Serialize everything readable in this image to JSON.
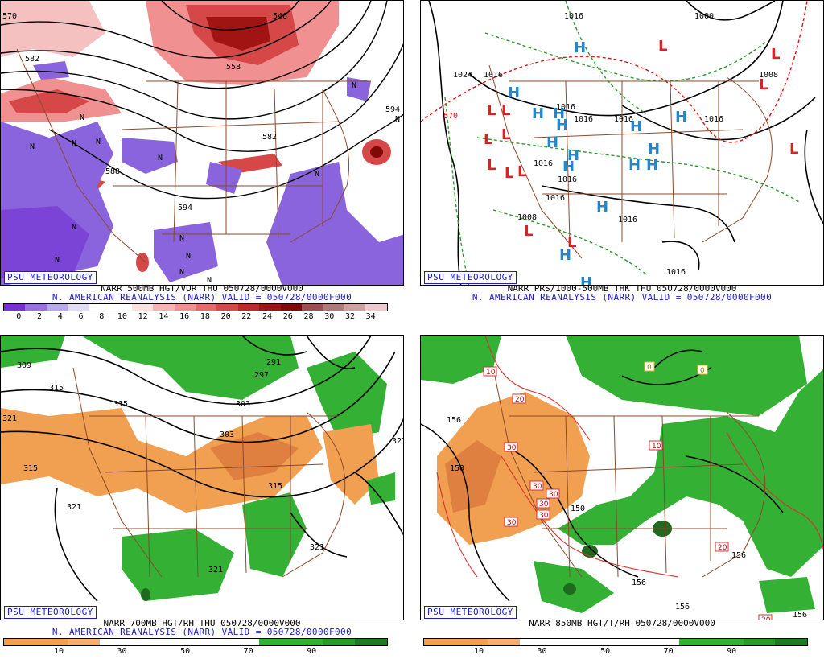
{
  "panels": [
    {
      "brand": "PSU METEOROLOGY",
      "caption1": "NARR 500MB HGT/VOR THU 050728/0000V000",
      "caption2": "N. AMERICAN REANALYSIS (NARR) VALID = 050728/0000F000",
      "colorbar_ticks": [
        "0",
        "2",
        "4",
        "6",
        "8",
        "10",
        "12",
        "14",
        "16",
        "18",
        "20",
        "22",
        "24",
        "26",
        "28",
        "30",
        "32",
        "34"
      ],
      "colorbar_colors": [
        "#7b2fd9",
        "#9a70e0",
        "#b8a8ee",
        "#e2dcf6",
        "#ffffff",
        "#ffffff",
        "#fde0e0",
        "#f8b4b4",
        "#f09090",
        "#e66a6a",
        "#d64848",
        "#c02828",
        "#a01414",
        "#800808",
        "#9a5050",
        "#b07878",
        "#d0a0a0",
        "#f0c8d0"
      ],
      "contour_labels": [
        "570",
        "582",
        "594",
        "558",
        "546",
        "582",
        "594",
        "588"
      ],
      "symbols": [
        "N",
        "N",
        "N",
        "N",
        "N",
        "N",
        "N",
        "N",
        "N",
        "N",
        "N",
        "N",
        "N",
        "N"
      ]
    },
    {
      "brand": "PSU METEOROLOGY",
      "caption1": "NARR PRS/1000-500MB THK THU 050728/0000V000",
      "caption2": "N. AMERICAN REANALYSIS (NARR) VALID = 050728/0000F000",
      "contour_labels": [
        "1016",
        "1000",
        "1024",
        "1016",
        "1016",
        "1016",
        "1016",
        "1016",
        "1016",
        "1016",
        "1008",
        "1016",
        "1016",
        "1008",
        "570",
        "1016"
      ],
      "lows": [
        "L",
        "L",
        "L",
        "L",
        "L",
        "L",
        "L",
        "L",
        "L",
        "L",
        "L",
        "L",
        "L"
      ],
      "highs": [
        "H",
        "H",
        "H",
        "H",
        "H",
        "H",
        "H",
        "H",
        "H",
        "H",
        "H",
        "H",
        "H",
        "H",
        "H",
        "H"
      ]
    },
    {
      "brand": "PSU METEOROLOGY",
      "caption1": "NARR 700MB HGT/RH THU 050728/0000V000",
      "caption2": "N. AMERICAN REANALYSIS (NARR) VALID = 050728/0000F000",
      "colorbar_ticks": [
        "10",
        "30",
        "50",
        "70",
        "90"
      ],
      "contour_labels": [
        "309",
        "315",
        "303",
        "297",
        "291",
        "315",
        "303",
        "321",
        "315",
        "315",
        "321",
        "321",
        "321",
        "327"
      ]
    },
    {
      "brand": "PSU METEOROLOGY",
      "caption1": "NARR 850MB HGT/T/RH 050728/0000V000",
      "colorbar_ticks": [
        "10",
        "30",
        "50",
        "70",
        "90"
      ],
      "contour_labels": [
        "156",
        "150",
        "150",
        "156",
        "156",
        "156",
        "156"
      ],
      "temp_labels": [
        "10",
        "20",
        "30",
        "30",
        "30",
        "30",
        "30",
        "30",
        "10",
        "20",
        "20",
        "0",
        "0"
      ]
    }
  ],
  "colors": {
    "brand_blue": "#1c1cc8",
    "map_lines": "#8b4a2b",
    "rh_dry": "#f0a050",
    "rh_moist": "#34b034",
    "low_red": "#e02020",
    "high_blue": "#1a8ad8",
    "thickness_red": "#e01010",
    "thickness_green": "#2a9a2a"
  }
}
